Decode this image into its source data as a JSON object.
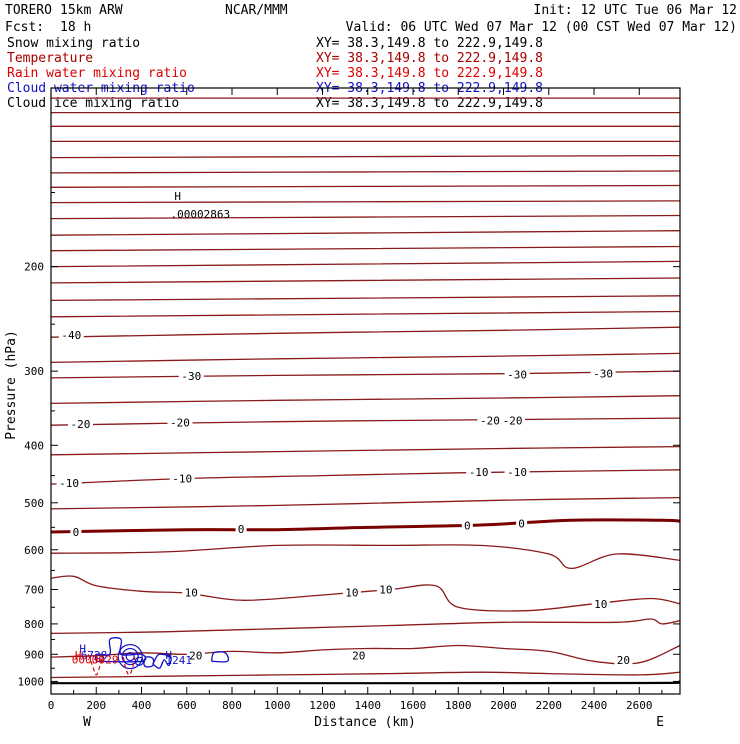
{
  "header": {
    "model": "TORERO",
    "resolution": "15km ARW",
    "center": "NCAR/MMM",
    "init": "Init: 12 UTC Tue 06 Mar 12",
    "fcst_label": "Fcst:",
    "fcst_value": "18 h",
    "valid": "Valid: 06 UTC Wed 07 Mar 12 (00 CST Wed 07 Mar 12)"
  },
  "fields": [
    {
      "name": "Snow mixing ratio",
      "color": "#000000",
      "xy": "XY=  38.3,149.8 to 222.9,149.8",
      "xy_color": "#000000"
    },
    {
      "name": "Temperature",
      "color": "#a80000",
      "xy": "XY=  38.3,149.8 to 222.9,149.8",
      "xy_color": "#a80000"
    },
    {
      "name": "Rain water mixing ratio",
      "color": "#e00000",
      "xy": "XY=  38.3,149.8 to 222.9,149.8",
      "xy_color": "#e00000"
    },
    {
      "name": "Cloud water mixing ratio",
      "color": "#1010c8",
      "xy": "XY=  38.3,149.8 to 222.9,149.8",
      "xy_color": "#1010c8"
    },
    {
      "name": "Cloud ice mixing ratio",
      "color": "#000000",
      "xy": "XY=  38.3,149.8 to 222.9,149.8",
      "xy_color": "#000000"
    }
  ],
  "colors": {
    "temperature": "#8b1a1a",
    "freezing": "#7a0000",
    "cloud_water": "#1010c8",
    "rain_water": "#e00000",
    "terrain": "#000000"
  },
  "chart_data": {
    "type": "contour-cross-section",
    "xlabel": "Distance (km)",
    "ylabel": "Pressure (hPa)",
    "xlim": [
      0,
      2780
    ],
    "ylim": [
      1050,
      100
    ],
    "x_ticks": [
      0,
      200,
      400,
      600,
      800,
      1000,
      1200,
      1400,
      1600,
      1800,
      2000,
      2200,
      2400,
      2600
    ],
    "y_ticks": [
      200,
      300,
      400,
      500,
      600,
      700,
      800,
      900,
      1000
    ],
    "left_end_label": "W",
    "right_end_label": "E",
    "grid": false,
    "temperature_contour_interval_C": 5,
    "temperature_isotherms": [
      {
        "pts": [
          [
            0,
            1007
          ],
          [
            2600,
            1006
          ],
          [
            2780,
            1000
          ]
        ]
      },
      {
        "pts": [
          [
            0,
            985
          ],
          [
            500,
            980
          ],
          [
            1000,
            975
          ],
          [
            1500,
            970
          ],
          [
            1900,
            965
          ],
          [
            2200,
            970
          ],
          [
            2600,
            975
          ],
          [
            2780,
            965
          ]
        ]
      },
      {
        "label": "20",
        "pts": [
          [
            0,
            910
          ],
          [
            200,
            905
          ],
          [
            400,
            895
          ],
          [
            600,
            900
          ],
          [
            800,
            890
          ],
          [
            1000,
            895
          ],
          [
            1200,
            885
          ],
          [
            1400,
            880
          ],
          [
            1600,
            880
          ],
          [
            1800,
            870
          ],
          [
            2000,
            880
          ],
          [
            2200,
            890
          ],
          [
            2400,
            925
          ],
          [
            2600,
            930
          ],
          [
            2780,
            870
          ]
        ]
      },
      {
        "pts": [
          [
            0,
            830
          ],
          [
            500,
            825
          ],
          [
            1000,
            815
          ],
          [
            1500,
            805
          ],
          [
            2000,
            795
          ],
          [
            2500,
            795
          ],
          [
            2650,
            785
          ],
          [
            2700,
            800
          ],
          [
            2780,
            790
          ]
        ]
      },
      {
        "label": "10",
        "pts": [
          [
            0,
            670
          ],
          [
            100,
            665
          ],
          [
            200,
            690
          ],
          [
            400,
            705
          ],
          [
            600,
            710
          ],
          [
            850,
            730
          ],
          [
            1200,
            715
          ],
          [
            1500,
            700
          ],
          [
            1700,
            690
          ],
          [
            1800,
            750
          ],
          [
            2100,
            760
          ],
          [
            2400,
            740
          ],
          [
            2650,
            725
          ],
          [
            2780,
            740
          ]
        ]
      },
      {
        "pts": [
          [
            0,
            608
          ],
          [
            500,
            605
          ],
          [
            1000,
            590
          ],
          [
            1500,
            590
          ],
          [
            1900,
            590
          ],
          [
            2200,
            610
          ],
          [
            2300,
            645
          ],
          [
            2500,
            610
          ],
          [
            2780,
            625
          ]
        ]
      },
      {
        "label": "0",
        "freezing": true,
        "pts": [
          [
            0,
            560
          ],
          [
            600,
            555
          ],
          [
            1000,
            555
          ],
          [
            1400,
            550
          ],
          [
            1900,
            545
          ],
          [
            2300,
            535
          ],
          [
            2700,
            535
          ],
          [
            2780,
            537
          ]
        ]
      },
      {
        "pts": [
          [
            0,
            512
          ],
          [
            1000,
            505
          ],
          [
            2000,
            495
          ],
          [
            2780,
            490
          ]
        ]
      },
      {
        "label": "-10",
        "pts": [
          [
            0,
            465
          ],
          [
            600,
            455
          ],
          [
            1200,
            450
          ],
          [
            1800,
            445
          ],
          [
            2780,
            440
          ]
        ]
      },
      {
        "pts": [
          [
            0,
            415
          ],
          [
            1000,
            410
          ],
          [
            2000,
            405
          ],
          [
            2780,
            402
          ]
        ]
      },
      {
        "label": "-20",
        "pts": [
          [
            0,
            370
          ],
          [
            1000,
            365
          ],
          [
            2000,
            362
          ],
          [
            2780,
            360
          ]
        ]
      },
      {
        "pts": [
          [
            0,
            340
          ],
          [
            1000,
            336
          ],
          [
            2000,
            333
          ],
          [
            2780,
            330
          ]
        ]
      },
      {
        "label": "-30",
        "pts": [
          [
            0,
            308
          ],
          [
            1000,
            305
          ],
          [
            2000,
            303
          ],
          [
            2780,
            300
          ]
        ]
      },
      {
        "pts": [
          [
            0,
            290
          ],
          [
            1000,
            286
          ],
          [
            2000,
            283
          ],
          [
            2780,
            280
          ]
        ]
      },
      {
        "label": "-40",
        "pts": [
          [
            0,
            263
          ],
          [
            1000,
            259
          ],
          [
            2000,
            256
          ],
          [
            2780,
            253
          ]
        ]
      },
      {
        "pts": [
          [
            0,
            243
          ],
          [
            2780,
            238
          ]
        ]
      },
      {
        "pts": [
          [
            0,
            228
          ],
          [
            2780,
            224
          ]
        ]
      },
      {
        "pts": [
          [
            0,
            213
          ],
          [
            2780,
            209
          ]
        ]
      },
      {
        "pts": [
          [
            0,
            200
          ],
          [
            2780,
            196
          ]
        ]
      },
      {
        "pts": [
          [
            0,
            188
          ],
          [
            2780,
            185
          ]
        ]
      },
      {
        "pts": [
          [
            0,
            177
          ],
          [
            2780,
            174
          ]
        ]
      },
      {
        "pts": [
          [
            0,
            166
          ],
          [
            2780,
            164
          ]
        ]
      },
      {
        "pts": [
          [
            0,
            156
          ],
          [
            2780,
            155
          ]
        ]
      },
      {
        "pts": [
          [
            0,
            147
          ],
          [
            2780,
            146
          ]
        ]
      },
      {
        "pts": [
          [
            0,
            139
          ],
          [
            2780,
            138
          ]
        ]
      },
      {
        "pts": [
          [
            0,
            131
          ],
          [
            2780,
            130
          ]
        ]
      },
      {
        "pts": [
          [
            0,
            123
          ],
          [
            2780,
            123
          ]
        ]
      },
      {
        "pts": [
          [
            0,
            116
          ],
          [
            2780,
            116
          ]
        ]
      },
      {
        "pts": [
          [
            0,
            110
          ],
          [
            2780,
            110
          ]
        ]
      },
      {
        "pts": [
          [
            0,
            104
          ],
          [
            2780,
            104
          ]
        ]
      }
    ],
    "isotherm_labels": [
      {
        "text": "-40",
        "x": 90,
        "p": 261
      },
      {
        "text": "-30",
        "x": 620,
        "p": 306
      },
      {
        "text": "-30",
        "x": 2060,
        "p": 304
      },
      {
        "text": "-30",
        "x": 2440,
        "p": 303
      },
      {
        "text": "-20",
        "x": 130,
        "p": 368
      },
      {
        "text": "-20",
        "x": 570,
        "p": 366
      },
      {
        "text": "-20",
        "x": 1940,
        "p": 363
      },
      {
        "text": "-20",
        "x": 2040,
        "p": 363
      },
      {
        "text": "-10",
        "x": 80,
        "p": 463
      },
      {
        "text": "-10",
        "x": 580,
        "p": 455
      },
      {
        "text": "-10",
        "x": 1890,
        "p": 444
      },
      {
        "text": "-10",
        "x": 2060,
        "p": 444
      },
      {
        "text": "0",
        "x": 110,
        "p": 560
      },
      {
        "text": "0",
        "x": 840,
        "p": 554
      },
      {
        "text": "0",
        "x": 1840,
        "p": 546
      },
      {
        "text": "0",
        "x": 2080,
        "p": 542
      },
      {
        "text": "10",
        "x": 620,
        "p": 708
      },
      {
        "text": "10",
        "x": 1330,
        "p": 708
      },
      {
        "text": "10",
        "x": 1480,
        "p": 700
      },
      {
        "text": "10",
        "x": 2430,
        "p": 741
      },
      {
        "text": "20",
        "x": 640,
        "p": 904
      },
      {
        "text": "20",
        "x": 1360,
        "p": 904
      },
      {
        "text": "20",
        "x": 2530,
        "p": 920
      }
    ],
    "cloud_water_contours": [
      {
        "pts": [
          [
            200,
            925
          ],
          [
            200,
            900
          ],
          [
            260,
            900
          ],
          [
            260,
            850
          ],
          [
            310,
            850
          ],
          [
            310,
            900
          ],
          [
            400,
            900
          ],
          [
            400,
            925
          ],
          [
            200,
            925
          ]
        ]
      },
      {
        "pts": [
          [
            450,
            935
          ],
          [
            470,
            905
          ],
          [
            490,
            900
          ],
          [
            530,
            910
          ],
          [
            520,
            940
          ],
          [
            500,
            920
          ],
          [
            480,
            950
          ],
          [
            450,
            935
          ]
        ]
      },
      {
        "pts": [
          [
            710,
            925
          ],
          [
            720,
            895
          ],
          [
            770,
            895
          ],
          [
            780,
            925
          ],
          [
            710,
            925
          ]
        ]
      },
      {
        "pts": [
          [
            410,
            935
          ],
          [
            420,
            910
          ],
          [
            450,
            915
          ],
          [
            450,
            940
          ],
          [
            420,
            945
          ],
          [
            410,
            935
          ]
        ]
      }
    ],
    "cloud_water_rings": [
      {
        "x": 350,
        "p": 908,
        "r": [
          4,
          8,
          12
        ]
      },
      {
        "x": 390,
        "p": 925,
        "r": [
          4
        ]
      }
    ],
    "rain_water_contours": [
      {
        "pts": [
          [
            165,
            900
          ],
          [
            185,
            945
          ],
          [
            200,
            975
          ],
          [
            215,
            945
          ],
          [
            230,
            905
          ]
        ]
      },
      {
        "pts": [
          [
            320,
            910
          ],
          [
            330,
            950
          ],
          [
            345,
            975
          ],
          [
            360,
            950
          ],
          [
            370,
            910
          ]
        ]
      }
    ],
    "extrema_labels": [
      {
        "text": "H",
        "x": 560,
        "p": 152,
        "color": "#000000"
      },
      {
        "text": ".00002863",
        "x": 660,
        "p": 163,
        "color": "#000000"
      },
      {
        "text": "H",
        "x": 140,
        "p": 880,
        "color": "#1010c8"
      },
      {
        "text": "H",
        "x": 520,
        "p": 902,
        "color": "#1010c8"
      },
      {
        "text": ".1241",
        "x": 550,
        "p": 920,
        "color": "#1010c8"
      },
      {
        "text": "H",
        "x": 120,
        "p": 902,
        "color": "#e00000"
      },
      {
        "text": "6728",
        "x": 190,
        "p": 902,
        "color": "#1010c8"
      },
      {
        "text": "00000",
        "x": 165,
        "p": 918,
        "color": "#e00000"
      },
      {
        "text": "3929",
        "x": 240,
        "p": 918,
        "color": "#e00000"
      }
    ]
  }
}
